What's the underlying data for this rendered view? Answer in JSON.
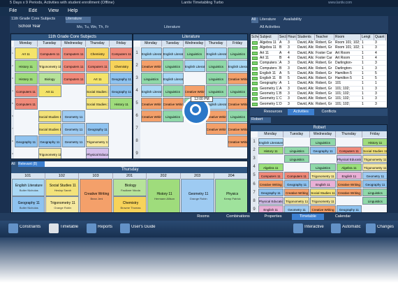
{
  "header": {
    "title": "5 Days x 9 Periods, Activities with student enrollment (Offline)",
    "app_name": "Lantiv Timetabling Turbo",
    "website": "www.lantiv.com"
  },
  "menu": [
    "File",
    "Edit",
    "View",
    "Help"
  ],
  "toolbar": {
    "tabs": [
      "11th Grade Core Subjects",
      "Literature"
    ],
    "term": "School Year",
    "days": "Mo, Tu, We, Th, Fr",
    "view": "Literature",
    "right_tabs": [
      "All",
      "Literature",
      "Availability"
    ],
    "filter": "All Activities"
  },
  "subject_colors": {
    "Art 11": "#f5e46a",
    "Computers 11": "#f08a7a",
    "Chemistry": "#f7d35a",
    "History 11": "#9fdc7c",
    "Trigonometry 11": "#f6e9a0",
    "Biology": "#b7e39a",
    "Geography 11": "#8fc3f0",
    "Social Studies 11": "#f3e27a",
    "Geometry 11": "#9ecbf2",
    "Physical Education 11": "#d6c0ec",
    "English Literature": "#a9d8f5",
    "Linguistics": "#8fd8a8",
    "Creative Writing": "#f4a06a",
    "Literature": "#d9e8f5",
    "Algebra 11": "#9be07a",
    "English 11": "#e9b0d6",
    "Physics": "#9fe29c"
  },
  "grid_core": {
    "title": "11th Grade Core Subjects",
    "days": [
      "Monday",
      "Tuesday",
      "Wednesday",
      "Thursday",
      "Friday"
    ],
    "periods": [
      1,
      2,
      3,
      4,
      5,
      6,
      7,
      8,
      9
    ],
    "rows": [
      [
        "Art 11",
        "Computers 11",
        "Computers 11",
        "Chemistry",
        "Computers 11"
      ],
      [
        "History 11",
        "Trigonometry 11",
        "Computers 11",
        "Computers 11",
        "Chemistry"
      ],
      [
        "History 11",
        "Biology",
        "Computers 11",
        "Art 11",
        "Geography 11"
      ],
      [
        "Computers 11",
        "Art 11",
        null,
        "Social Studies 11",
        "Geography 11"
      ],
      [
        "Computers 11",
        null,
        null,
        "Social Studies 11",
        "History 11"
      ],
      [
        null,
        "Social Studies 11",
        "Geometry 11",
        null,
        null
      ],
      [
        null,
        "Social Studies 11",
        "Geometry 11",
        "Geography 11",
        null
      ],
      [
        "Geography 11",
        "Geography 11",
        "Geometry 11",
        "Trigonometry 11",
        null
      ],
      [
        null,
        "Trigonometry 11",
        null,
        "Physical Education 11",
        null
      ]
    ]
  },
  "grid_literature": {
    "title": "Literature",
    "days": [
      "Monday",
      "Tuesday",
      "Wednesday",
      "Thursday",
      "Friday"
    ],
    "periods": [
      1,
      2,
      3,
      4,
      5,
      6,
      7,
      8,
      9
    ],
    "tooltip": "12:00 PM",
    "rows": [
      [
        "English Literature",
        "English Literature",
        "Linguistics",
        "English Literature",
        "Linguistics"
      ],
      [
        "Creative Writing",
        "Linguistics",
        "English Literature",
        "Linguistics",
        "English Literature"
      ],
      [
        "Linguistics",
        "English Literature",
        null,
        "Linguistics",
        "Creative Writing"
      ],
      [
        "English Literature",
        "Linguistics",
        "Creative Writing",
        "Linguistics",
        "Linguistics"
      ],
      [
        "Creative Writing",
        "Creative Writing",
        "Linguistics",
        "English Literature",
        "Creative Writing"
      ],
      [
        "Creative Writing",
        "Linguistics",
        null,
        "Creative Writing",
        "Linguistics"
      ],
      [
        null,
        null,
        null,
        "Creative Writing",
        "Creative Writing"
      ],
      [
        null,
        null,
        null,
        null,
        "Creative Writing"
      ],
      [
        null,
        null,
        null,
        null,
        null
      ]
    ]
  },
  "activities": {
    "columns": [
      "Sched",
      "Subject",
      "Sect",
      "Hours",
      "Students",
      "Teacher",
      "Room",
      "Lengt",
      "Quant"
    ],
    "rows": [
      [
        "Algebra 11",
        "A",
        3,
        "David, Alic",
        "Robert, Gr",
        "Room 101; 102;",
        1,
        3
      ],
      [
        "Algebra 11",
        "B",
        3,
        "David, Alic",
        "Robert, Gr",
        "Room 101; 102;",
        1,
        3
      ],
      [
        "Art 11",
        "A",
        4,
        "David, Alic",
        "Foster Car",
        "Art Room",
        1,
        4
      ],
      [
        "Art 11",
        "B",
        4,
        "David, Alic",
        "Foster Car",
        "Art Room",
        1,
        4
      ],
      [
        "Computers 11",
        "A",
        3,
        "David, Alic",
        "Robert, Gr",
        "Darlington-",
        1,
        3
      ],
      [
        "Computers 11",
        "B",
        3,
        "David, Alic",
        "Robert, Gr",
        "Darlington-",
        1,
        3
      ],
      [
        "English 11",
        "A",
        5,
        "David, Alic",
        "Robert, Gr",
        "Hamilton 5",
        1,
        5
      ],
      [
        "English 11",
        "B",
        5,
        "David, Alic",
        "Robert, Gr",
        "Hamilton 5",
        1,
        5
      ],
      [
        "Geography 11",
        "A",
        1,
        "David, Alic",
        "Robert, Gr",
        "101",
        1,
        1
      ],
      [
        "Geometry 11",
        "A",
        3,
        "David, Alic",
        "Robert, Gr",
        "101; 102;",
        1,
        3
      ],
      [
        "Geometry 11",
        "B",
        3,
        "David, Alic",
        "Robert, Gr",
        "101; 102;",
        1,
        3
      ],
      [
        "Geometry 11",
        "C",
        3,
        "David, Alic",
        "Robert, Gr",
        "101; 102;",
        1,
        3
      ],
      [
        "Geometry 11",
        "D",
        3,
        "David, Alic",
        "Robert, Gr",
        "101; 102;",
        1,
        3
      ]
    ]
  },
  "panel_tabs": [
    "Resources",
    "Activities",
    "Conflicts"
  ],
  "grid_teacher": {
    "tab": "Robert",
    "title": "Robert",
    "days": [
      "Monday",
      "Tuesday",
      "Wednesday",
      "Thursday",
      "Friday"
    ],
    "periods": [
      1,
      2,
      3,
      4,
      5,
      6,
      7,
      8,
      9
    ],
    "rows": [
      [
        "English Literature",
        null,
        "Linguistics",
        null,
        "History 11"
      ],
      [
        "History 11",
        "Linguistics",
        "Geography 11",
        "Computers 11",
        "Social Studies 11"
      ],
      [
        null,
        "Linguistics",
        null,
        "Physical Education 11",
        "Trigonometry 11"
      ],
      [
        "Algebra 11",
        null,
        "Linguistics",
        "Algebra 11",
        "Trigonometry 11"
      ],
      [
        "Computers 11",
        "Computers 11",
        "Trigonometry 11",
        "English 11",
        "Geometry 11"
      ],
      [
        "Creative Writing",
        "Geography 11",
        "English 11",
        "Creative Writing",
        "Geography 11"
      ],
      [
        "Geography 11",
        "Creative Writing",
        "Social Studies 11",
        "Creative Writing",
        "Linguistics"
      ],
      [
        "Physical Education 11",
        "Trigonometry 11",
        "Trigonometry 11",
        null,
        "Linguistics"
      ],
      [
        "English 11",
        "Geometry 11",
        "Creative Writing",
        "Geography 11",
        null
      ]
    ]
  },
  "rooms_panel": {
    "tabs": [
      "All",
      "Relevant (8)"
    ],
    "day": "Thursday",
    "rooms": [
      "101",
      "102",
      "103",
      "201",
      "202",
      "203",
      "204"
    ],
    "cells": [
      [
        {
          "subject": "English Literature",
          "teacher": "Butler Nicholas"
        },
        {
          "subject": "Geography 11",
          "teacher": "Butler Nicholas"
        }
      ],
      [
        {
          "subject": "Social Studies 11",
          "teacher": "Heslop Sarah"
        },
        {
          "subject": "Trigonometry 11",
          "teacher": "Grange Robin"
        }
      ],
      [
        {
          "subject": "Creative Writing",
          "teacher": "Bean Jeni"
        }
      ],
      [
        {
          "subject": "Biology",
          "teacher": "Faulkner Nicola"
        },
        {
          "subject": "Chemistry",
          "teacher": "Browne Thomas"
        }
      ],
      [
        {
          "subject": "History 11",
          "teacher": "Hermann Allison"
        }
      ],
      [
        {
          "subject": "Geometry 11",
          "teacher": "Grange Robin"
        }
      ],
      [
        {
          "subject": "Physics",
          "teacher": "Kemp Patrick"
        }
      ]
    ]
  },
  "bottom_tabs": [
    "Rooms",
    "Combinations",
    "Properties",
    "Timetable",
    "Calendar"
  ],
  "bottom_toolbar": [
    "Constraints",
    "Timetable",
    "Reports",
    "User's Guide",
    "Interactive",
    "Automatic",
    "Changes"
  ]
}
